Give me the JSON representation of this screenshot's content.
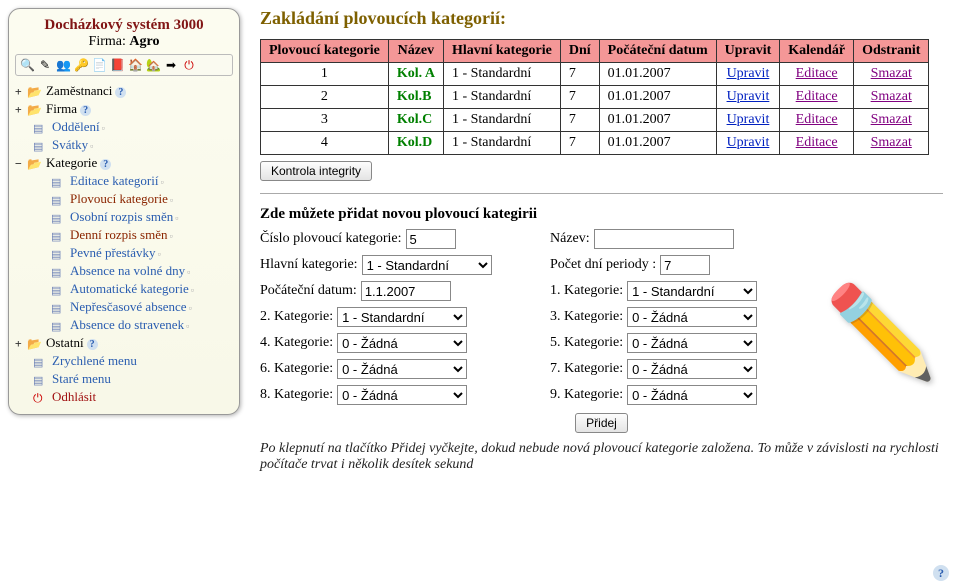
{
  "sidebar": {
    "title": "Docházkový systém 3000",
    "firm_label": "Firma:",
    "firm_name": "Agro",
    "toolbar_icons": [
      "search",
      "pencil",
      "users",
      "key",
      "doc",
      "book",
      "home",
      "house",
      "arrow",
      "power"
    ],
    "nodes": [
      {
        "label": "Zaměstnanci",
        "type": "folder",
        "toggle": "+",
        "help": true
      },
      {
        "label": "Firma",
        "type": "folder",
        "toggle": "+",
        "help": true,
        "children": [
          {
            "label": "Oddělení",
            "trail": true
          },
          {
            "label": "Svátky",
            "trail": true
          }
        ]
      },
      {
        "label": "Kategorie",
        "type": "folder",
        "toggle": "−",
        "help": true,
        "children": [
          {
            "label": "Editace kategorií",
            "trail": true
          },
          {
            "label": "Plovoucí kategorie",
            "trail": true,
            "selected": true
          },
          {
            "label": "Osobní rozpis směn",
            "trail": true
          },
          {
            "label": "Denní rozpis směn",
            "trail": true,
            "selected": true
          },
          {
            "label": "Pevné přestávky",
            "trail": true
          },
          {
            "label": "Absence na volné dny",
            "trail": true
          },
          {
            "label": "Automatické kategorie",
            "trail": true
          },
          {
            "label": "Nepřesčasové absence",
            "trail": true
          },
          {
            "label": "Absence do stravenek",
            "trail": true
          }
        ]
      },
      {
        "label": "Ostatní",
        "type": "folder",
        "toggle": "+",
        "help": true,
        "children": [
          {
            "label": "Zrychlené menu"
          },
          {
            "label": "Staré menu"
          },
          {
            "label": "Odhlásit",
            "red": true,
            "power": true
          }
        ]
      }
    ]
  },
  "main": {
    "heading": "Zakládání plovoucích kategorií:",
    "table": {
      "headers": [
        "Plovoucí kategorie",
        "Název",
        "Hlavní kategorie",
        "Dní",
        "Počáteční datum",
        "Upravit",
        "Kalendář",
        "Odstranit"
      ],
      "rows": [
        {
          "id": "1",
          "name": "Kol. A",
          "main_cat": "1 - Standardní",
          "days": "7",
          "date": "01.01.2007",
          "edit": "Upravit",
          "cal": "Editace",
          "del": "Smazat"
        },
        {
          "id": "2",
          "name": "Kol.B",
          "main_cat": "1 - Standardní",
          "days": "7",
          "date": "01.01.2007",
          "edit": "Upravit",
          "cal": "Editace",
          "del": "Smazat"
        },
        {
          "id": "3",
          "name": "Kol.C",
          "main_cat": "1 - Standardní",
          "days": "7",
          "date": "01.01.2007",
          "edit": "Upravit",
          "cal": "Editace",
          "del": "Smazat"
        },
        {
          "id": "4",
          "name": "Kol.D",
          "main_cat": "1 - Standardní",
          "days": "7",
          "date": "01.01.2007",
          "edit": "Upravit",
          "cal": "Editace",
          "del": "Smazat"
        }
      ]
    },
    "integrity_btn": "Kontrola integrity",
    "form": {
      "heading": "Zde můžete přidat novou plovoucí kategirii",
      "num_label": "Číslo plovoucí kategorie:",
      "num_value": "5",
      "name_label": "Název:",
      "name_value": "",
      "main_label": "Hlavní kategorie:",
      "main_value": "1 - Standardní",
      "days_label": "Počet dní periody :",
      "days_value": "7",
      "start_label": "Počáteční datum:",
      "start_value": "1.1.2007",
      "cat_labels": {
        "1": "1. Kategorie:",
        "2": "2. Kategorie:",
        "3": "3. Kategorie:",
        "4": "4. Kategorie:",
        "5": "5. Kategorie:",
        "6": "6. Kategorie:",
        "7": "7. Kategorie:",
        "8": "8. Kategorie:",
        "9": "9. Kategorie:"
      },
      "cat_values": {
        "1": "1 - Standardní",
        "2": "1 - Standardní",
        "3": "0 - Žádná",
        "4": "0 - Žádná",
        "5": "0 - Žádná",
        "6": "0 - Žádná",
        "7": "0 - Žádná",
        "8": "0 - Žádná",
        "9": "0 - Žádná"
      },
      "add_btn": "Přidej",
      "note": "Po klepnutí na tlačítko Přidej vyčkejte, dokud nebude nová plovoucí kategorie založena. To může v závislosti na rychlosti počítače trvat i několik desítek sekund"
    }
  },
  "colors": {
    "header_bg": "#f49797",
    "heading": "#7e6000",
    "name_green": "#008000",
    "link_blue": "#0020c0",
    "link_purple": "#800080"
  }
}
